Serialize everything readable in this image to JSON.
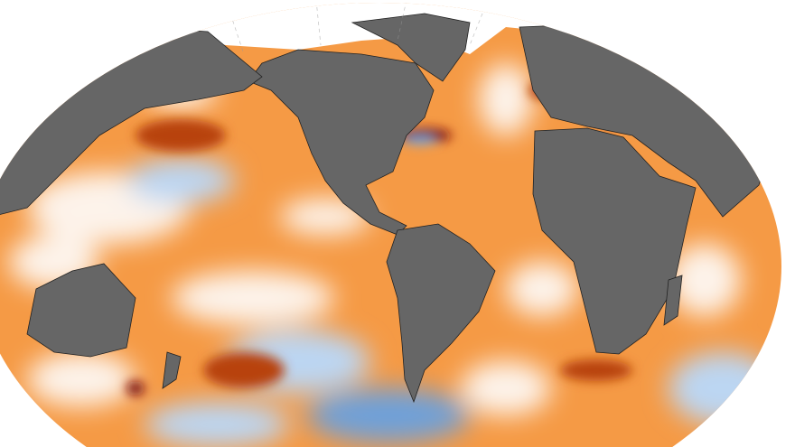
{
  "map": {
    "projection": "world-ellipse",
    "colors": {
      "background": "#ffffff",
      "land": "#666666",
      "land_border": "#222222",
      "sea_ice": "#ffffff",
      "warm_anomaly": "#f59a45",
      "strong_warm_anomaly": "#b8420f",
      "extreme_warm_anomaly": "#7a0f0f",
      "neutral": "#fdf3ea",
      "cool_anomaly": "#bcd6f2",
      "strong_cool_anomaly": "#6fa0d8"
    }
  }
}
